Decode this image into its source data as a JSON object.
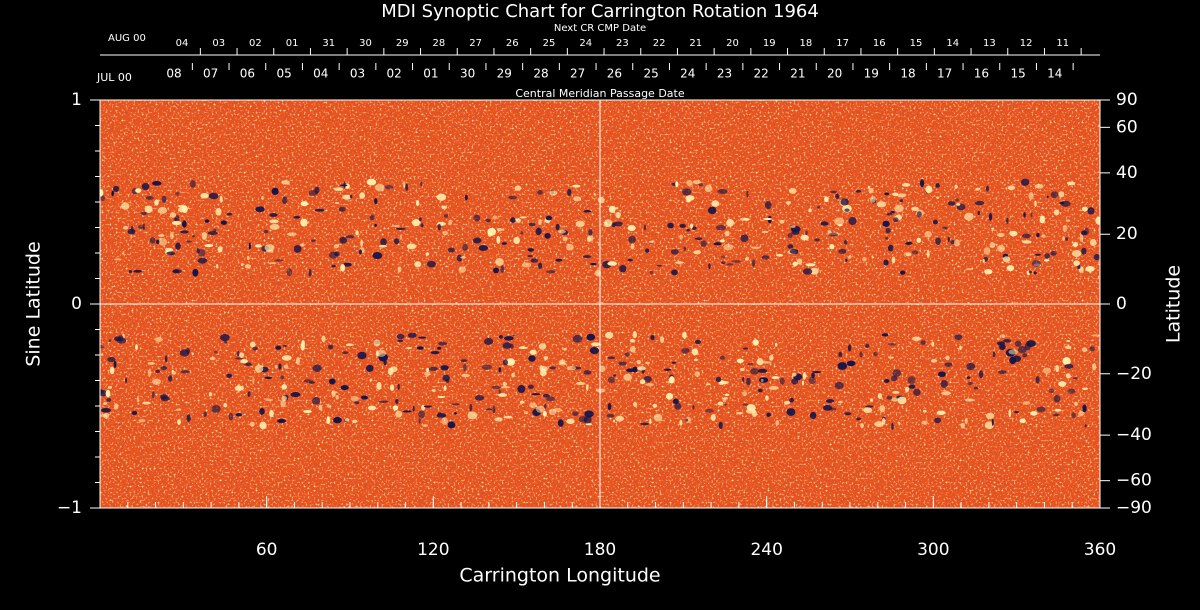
{
  "chart_data": {
    "type": "synoptic-map",
    "title": "MDI Synoptic Chart for Carrington Rotation 1964",
    "xlabel": "Carrington Longitude",
    "ylabel": "Sine Latitude",
    "y2label": "Latitude",
    "xlim": [
      0,
      360
    ],
    "xticks": [
      60,
      120,
      180,
      240,
      300,
      360
    ],
    "ylim": [
      -1,
      1
    ],
    "yticks": [
      {
        "value": -1,
        "label": "−1"
      },
      0,
      1
    ],
    "y2scale": "sine",
    "y2lim": [
      -90,
      90
    ],
    "y2ticks": [
      90,
      60,
      40,
      20,
      0,
      {
        "value": -20,
        "label": "−20"
      },
      {
        "value": -40,
        "label": "−40"
      },
      {
        "value": -60,
        "label": "−60"
      },
      {
        "value": -90,
        "label": "−90"
      }
    ],
    "top_axis": {
      "label": "Central Meridian Passage Date",
      "month": "JUL 00",
      "dates": [
        "08",
        "07",
        "06",
        "05",
        "04",
        "03",
        "02",
        "01",
        "30",
        "29",
        "28",
        "27",
        "26",
        "25",
        "24",
        "23",
        "22",
        "21",
        "20",
        "19",
        "18",
        "17",
        "16",
        "15",
        "14"
      ]
    },
    "top_axis2": {
      "label": "Next CR CMP Date",
      "month": "AUG 00",
      "color": "#ff4a1a",
      "dates": [
        "04",
        "03",
        "02",
        "01",
        "31",
        "30",
        "29",
        "28",
        "27",
        "26",
        "25",
        "24",
        "23",
        "22",
        "21",
        "20",
        "19",
        "18",
        "17",
        "16",
        "15",
        "14",
        "13",
        "12",
        "11"
      ]
    }
  }
}
